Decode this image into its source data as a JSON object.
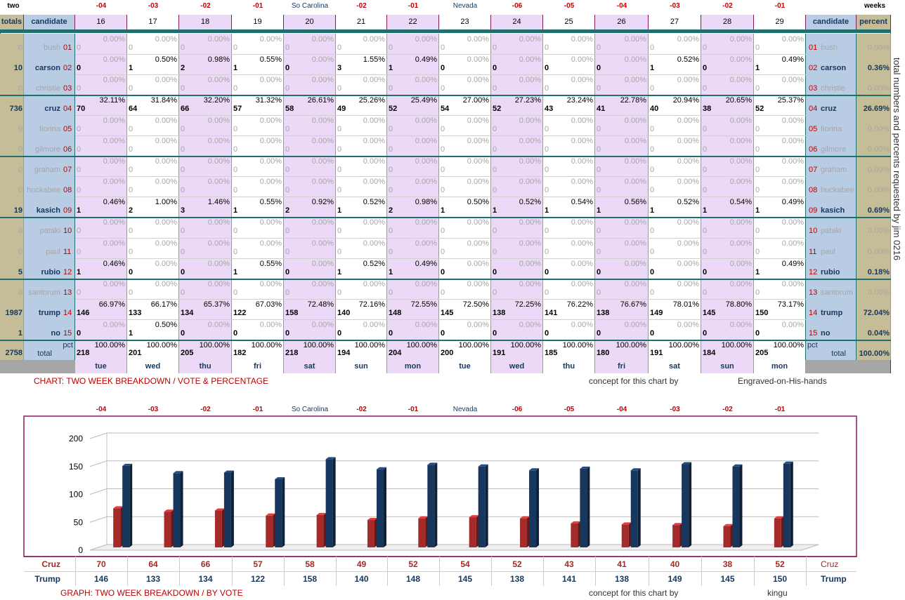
{
  "top_labels": {
    "two": "two",
    "weeks": "weeks",
    "day_offsets": [
      "-04",
      "-03",
      "-02",
      "-01",
      "So Carolina",
      "-02",
      "-01",
      "Nevada",
      "-06",
      "-05",
      "-04",
      "-03",
      "-02",
      "-01"
    ]
  },
  "table": {
    "col_totals": "totals",
    "col_candidate": "candidate",
    "col_percent": "percent",
    "days": [
      "16",
      "17",
      "18",
      "19",
      "20",
      "21",
      "22",
      "23",
      "24",
      "25",
      "26",
      "27",
      "28",
      "29"
    ],
    "weekdays": [
      "tue",
      "wed",
      "thu",
      "fri",
      "sat",
      "sun",
      "mon",
      "tue",
      "wed",
      "thu",
      "fri",
      "sat",
      "sun",
      "mon"
    ],
    "total_label": "total",
    "pct_label": "pct",
    "candidates": [
      {
        "name": "bush",
        "num": "01",
        "total": "0",
        "pct": "0.00%",
        "selected": false,
        "votes": [
          0,
          0,
          0,
          0,
          0,
          0,
          0,
          0,
          0,
          0,
          0,
          0,
          0,
          0
        ],
        "pcts": [
          "0.00%",
          "0.00%",
          "0.00%",
          "0.00%",
          "0.00%",
          "0.00%",
          "0.00%",
          "0.00%",
          "0.00%",
          "0.00%",
          "0.00%",
          "0.00%",
          "0.00%",
          "0.00%"
        ]
      },
      {
        "name": "carson",
        "num": "02",
        "total": "10",
        "pct": "0.36%",
        "selected": true,
        "votes": [
          0,
          1,
          2,
          1,
          0,
          3,
          1,
          0,
          0,
          0,
          0,
          1,
          0,
          1
        ],
        "pcts": [
          "0.00%",
          "0.50%",
          "0.98%",
          "0.55%",
          "0.00%",
          "1.55%",
          "0.49%",
          "0.00%",
          "0.00%",
          "0.00%",
          "0.00%",
          "0.52%",
          "0.00%",
          "0.49%"
        ]
      },
      {
        "name": "christie",
        "num": "03",
        "total": "0",
        "pct": "0.00%",
        "selected": false,
        "votes": [
          0,
          0,
          0,
          0,
          0,
          0,
          0,
          0,
          0,
          0,
          0,
          0,
          0,
          0
        ],
        "pcts": [
          "0.00%",
          "0.00%",
          "0.00%",
          "0.00%",
          "0.00%",
          "0.00%",
          "0.00%",
          "0.00%",
          "0.00%",
          "0.00%",
          "0.00%",
          "0.00%",
          "0.00%",
          "0.00%"
        ]
      },
      {
        "name": "cruz",
        "num": "04",
        "total": "736",
        "pct": "26.69%",
        "selected": true,
        "votes": [
          70,
          64,
          66,
          57,
          58,
          49,
          52,
          54,
          52,
          43,
          41,
          40,
          38,
          52
        ],
        "pcts": [
          "32.11%",
          "31.84%",
          "32.20%",
          "31.32%",
          "26.61%",
          "25.26%",
          "25.49%",
          "27.00%",
          "27.23%",
          "23.24%",
          "22.78%",
          "20.94%",
          "20.65%",
          "25.37%"
        ]
      },
      {
        "name": "fiorina",
        "num": "05",
        "total": "0",
        "pct": "0.00%",
        "selected": false,
        "votes": [
          0,
          0,
          0,
          0,
          0,
          0,
          0,
          0,
          0,
          0,
          0,
          0,
          0,
          0
        ],
        "pcts": [
          "0.00%",
          "0.00%",
          "0.00%",
          "0.00%",
          "0.00%",
          "0.00%",
          "0.00%",
          "0.00%",
          "0.00%",
          "0.00%",
          "0.00%",
          "0.00%",
          "0.00%",
          "0.00%"
        ]
      },
      {
        "name": "gilmore",
        "num": "06",
        "total": "0",
        "pct": "0.00%",
        "selected": false,
        "votes": [
          0,
          0,
          0,
          0,
          0,
          0,
          0,
          0,
          0,
          0,
          0,
          0,
          0,
          0
        ],
        "pcts": [
          "0.00%",
          "0.00%",
          "0.00%",
          "0.00%",
          "0.00%",
          "0.00%",
          "0.00%",
          "0.00%",
          "0.00%",
          "0.00%",
          "0.00%",
          "0.00%",
          "0.00%",
          "0.00%"
        ]
      },
      {
        "name": "graham",
        "num": "07",
        "total": "0",
        "pct": "0.00%",
        "selected": false,
        "votes": [
          0,
          0,
          0,
          0,
          0,
          0,
          0,
          0,
          0,
          0,
          0,
          0,
          0,
          0
        ],
        "pcts": [
          "0.00%",
          "0.00%",
          "0.00%",
          "0.00%",
          "0.00%",
          "0.00%",
          "0.00%",
          "0.00%",
          "0.00%",
          "0.00%",
          "0.00%",
          "0.00%",
          "0.00%",
          "0.00%"
        ]
      },
      {
        "name": "huckabee",
        "num": "08",
        "total": "0",
        "pct": "0.00%",
        "selected": false,
        "votes": [
          0,
          0,
          0,
          0,
          0,
          0,
          0,
          0,
          0,
          0,
          0,
          0,
          0,
          0
        ],
        "pcts": [
          "0.00%",
          "0.00%",
          "0.00%",
          "0.00%",
          "0.00%",
          "0.00%",
          "0.00%",
          "0.00%",
          "0.00%",
          "0.00%",
          "0.00%",
          "0.00%",
          "0.00%",
          "0.00%"
        ]
      },
      {
        "name": "kasich",
        "num": "09",
        "total": "19",
        "pct": "0.69%",
        "selected": true,
        "votes": [
          1,
          2,
          3,
          1,
          2,
          1,
          2,
          1,
          1,
          1,
          1,
          1,
          1,
          1
        ],
        "pcts": [
          "0.46%",
          "1.00%",
          "1.46%",
          "0.55%",
          "0.92%",
          "0.52%",
          "0.98%",
          "0.50%",
          "0.52%",
          "0.54%",
          "0.56%",
          "0.52%",
          "0.54%",
          "0.49%"
        ]
      },
      {
        "name": "pataki",
        "num": "10",
        "total": "0",
        "pct": "0.00%",
        "selected": false,
        "votes": [
          0,
          0,
          0,
          0,
          0,
          0,
          0,
          0,
          0,
          0,
          0,
          0,
          0,
          0
        ],
        "pcts": [
          "0.00%",
          "0.00%",
          "0.00%",
          "0.00%",
          "0.00%",
          "0.00%",
          "0.00%",
          "0.00%",
          "0.00%",
          "0.00%",
          "0.00%",
          "0.00%",
          "0.00%",
          "0.00%"
        ]
      },
      {
        "name": "paul",
        "num": "11",
        "total": "0",
        "pct": "0.00%",
        "selected": false,
        "votes": [
          0,
          0,
          0,
          0,
          0,
          0,
          0,
          0,
          0,
          0,
          0,
          0,
          0,
          0
        ],
        "pcts": [
          "0.00%",
          "0.00%",
          "0.00%",
          "0.00%",
          "0.00%",
          "0.00%",
          "0.00%",
          "0.00%",
          "0.00%",
          "0.00%",
          "0.00%",
          "0.00%",
          "0.00%",
          "0.00%"
        ]
      },
      {
        "name": "rubio",
        "num": "12",
        "total": "5",
        "pct": "0.18%",
        "selected": true,
        "votes": [
          1,
          0,
          0,
          1,
          0,
          1,
          1,
          0,
          0,
          0,
          0,
          0,
          0,
          1
        ],
        "pcts": [
          "0.46%",
          "0.00%",
          "0.00%",
          "0.55%",
          "0.00%",
          "0.52%",
          "0.49%",
          "0.00%",
          "0.00%",
          "0.00%",
          "0.00%",
          "0.00%",
          "0.00%",
          "0.49%"
        ]
      },
      {
        "name": "santorum",
        "num": "13",
        "total": "0",
        "pct": "0.00%",
        "selected": false,
        "votes": [
          0,
          0,
          0,
          0,
          0,
          0,
          0,
          0,
          0,
          0,
          0,
          0,
          0,
          0
        ],
        "pcts": [
          "0.00%",
          "0.00%",
          "0.00%",
          "0.00%",
          "0.00%",
          "0.00%",
          "0.00%",
          "0.00%",
          "0.00%",
          "0.00%",
          "0.00%",
          "0.00%",
          "0.00%",
          "0.00%"
        ]
      },
      {
        "name": "trump",
        "num": "14",
        "total": "1987",
        "pct": "72.04%",
        "selected": true,
        "votes": [
          146,
          133,
          134,
          122,
          158,
          140,
          148,
          145,
          138,
          141,
          138,
          149,
          145,
          150
        ],
        "pcts": [
          "66.97%",
          "66.17%",
          "65.37%",
          "67.03%",
          "72.48%",
          "72.16%",
          "72.55%",
          "72.50%",
          "72.25%",
          "76.22%",
          "76.67%",
          "78.01%",
          "78.80%",
          "73.17%"
        ]
      },
      {
        "name": "no",
        "num": "15",
        "total": "1",
        "pct": "0.04%",
        "selected": true,
        "votes": [
          0,
          1,
          0,
          0,
          0,
          0,
          0,
          0,
          0,
          0,
          0,
          0,
          0,
          0
        ],
        "pcts": [
          "0.00%",
          "0.50%",
          "0.00%",
          "0.00%",
          "0.00%",
          "0.00%",
          "0.00%",
          "0.00%",
          "0.00%",
          "0.00%",
          "0.00%",
          "0.00%",
          "0.00%",
          "0.00%"
        ]
      }
    ],
    "totals_row": {
      "total": "2758",
      "pct": "100.00%",
      "votes": [
        218,
        201,
        205,
        182,
        218,
        194,
        204,
        200,
        191,
        185,
        180,
        191,
        184,
        205
      ],
      "pcts": [
        "100.00%",
        "100.00%",
        "100.00%",
        "100.00%",
        "100.00%",
        "100.00%",
        "100.00%",
        "100.00%",
        "100.00%",
        "100.00%",
        "100.00%",
        "100.00%",
        "100.00%",
        "100.00%"
      ]
    }
  },
  "captions": {
    "chart_caption": "CHART: TWO WEEK BREAKDOWN / VOTE & PERCENTAGE",
    "concept": "concept for this chart by",
    "chart_author": "Engraved-on-His-hands",
    "graph_caption": "GRAPH: TWO WEEK BREAKDOWN / BY VOTE",
    "graph_author": "kingu",
    "side_text": "total numbers and percents requested by    jim 0216"
  },
  "colors": {
    "purple_border": "#8b1a5a",
    "lavender": "#ecd9f7",
    "blue_gray": "#b8cce4",
    "tan": "#c4bd97",
    "teal": "#1f6f6f",
    "cruz_bar": "#a52a2a",
    "trump_bar": "#17375e"
  },
  "chart_data": {
    "type": "bar",
    "categories": [
      "-04",
      "-03",
      "-02",
      "-01",
      "So Carolina",
      "-02",
      "-01",
      "Nevada",
      "-06",
      "-05",
      "-04",
      "-03",
      "-02",
      "-01"
    ],
    "series": [
      {
        "name": "Cruz",
        "values": [
          70,
          64,
          66,
          57,
          58,
          49,
          52,
          54,
          52,
          43,
          41,
          40,
          38,
          52
        ],
        "color": "#a52a2a"
      },
      {
        "name": "Trump",
        "values": [
          146,
          133,
          134,
          122,
          158,
          140,
          148,
          145,
          138,
          141,
          138,
          149,
          145,
          150
        ],
        "color": "#17375e"
      }
    ],
    "ylim": [
      0,
      200
    ],
    "yticks": [
      0,
      50,
      100,
      150,
      200
    ],
    "grid": true,
    "bar_style": "3d"
  }
}
